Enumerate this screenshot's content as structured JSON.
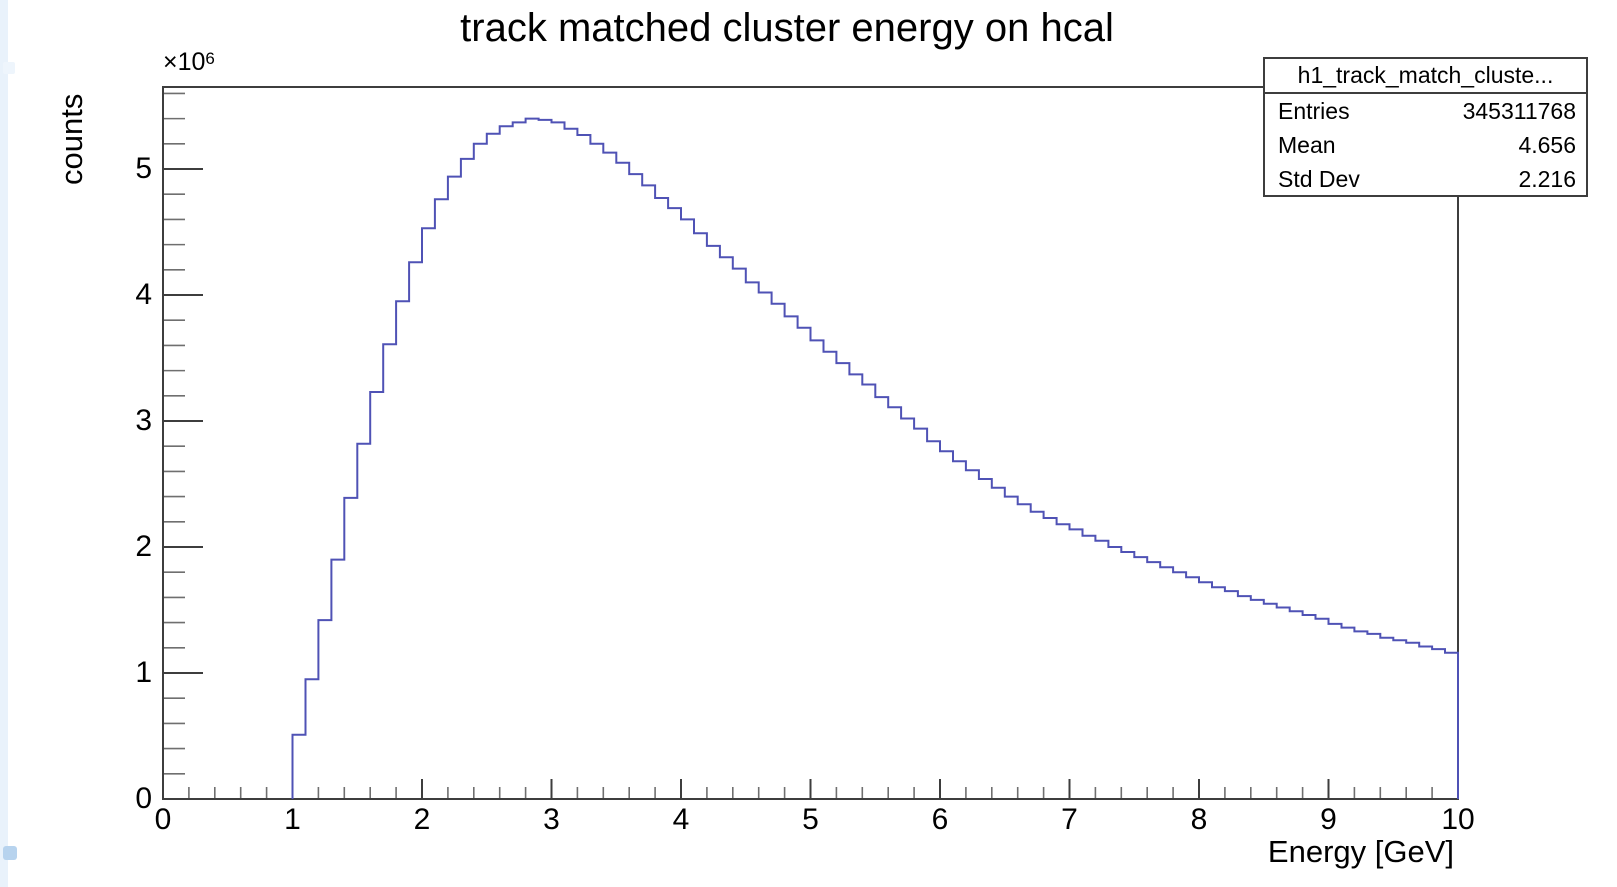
{
  "title": "track matched cluster energy on hcal",
  "axes": {
    "x_title": "Energy [GeV]",
    "y_title": "counts",
    "y_exponent_prefix": "×10",
    "y_exponent_power": "6",
    "x_tick_labels": [
      "0",
      "1",
      "2",
      "3",
      "4",
      "5",
      "6",
      "7",
      "8",
      "9",
      "10"
    ],
    "y_tick_labels": [
      "0",
      "1",
      "2",
      "3",
      "4",
      "5"
    ]
  },
  "stats_box": {
    "title": "h1_track_match_cluste...",
    "rows": [
      {
        "label": "Entries",
        "value": "345311768"
      },
      {
        "label": "Mean",
        "value": "4.656"
      },
      {
        "label": "Std Dev",
        "value": "2.216"
      }
    ]
  },
  "chart_data": {
    "type": "bar",
    "subtype": "step-histogram",
    "title": "track matched cluster energy on hcal",
    "xlabel": "Energy [GeV]",
    "ylabel": "counts",
    "x_range": [
      0,
      10
    ],
    "y_range_millions": [
      0,
      5.651
    ],
    "y_unit_scale": 1000000,
    "bin_start": 0,
    "bin_width": 0.1,
    "x_major_step": 1,
    "x_minor_step": 0.2,
    "y_major_step_millions": 1,
    "y_minor_step_millions": 0.2,
    "grid": false,
    "legend": "none",
    "values_millions": [
      0,
      0,
      0,
      0,
      0,
      0,
      0,
      0,
      0,
      0,
      0.51,
      0.95,
      1.42,
      1.9,
      2.39,
      2.82,
      3.23,
      3.61,
      3.95,
      4.26,
      4.53,
      4.76,
      4.94,
      5.08,
      5.2,
      5.28,
      5.34,
      5.37,
      5.4,
      5.39,
      5.37,
      5.32,
      5.27,
      5.2,
      5.13,
      5.05,
      4.96,
      4.87,
      4.77,
      4.69,
      4.6,
      4.49,
      4.39,
      4.3,
      4.21,
      4.1,
      4.02,
      3.93,
      3.83,
      3.74,
      3.64,
      3.55,
      3.46,
      3.37,
      3.29,
      3.19,
      3.11,
      3.02,
      2.94,
      2.84,
      2.76,
      2.68,
      2.61,
      2.54,
      2.47,
      2.4,
      2.34,
      2.28,
      2.23,
      2.18,
      2.14,
      2.09,
      2.05,
      2.0,
      1.96,
      1.92,
      1.88,
      1.84,
      1.8,
      1.76,
      1.72,
      1.68,
      1.65,
      1.61,
      1.58,
      1.55,
      1.52,
      1.49,
      1.46,
      1.43,
      1.39,
      1.36,
      1.33,
      1.31,
      1.28,
      1.26,
      1.24,
      1.21,
      1.19,
      1.16
    ],
    "colors": {
      "line": "#4f52b5",
      "frame": "#3d3d3d",
      "major_tick": "#3d3d3d",
      "minor_tick": "#6f6f6f",
      "text": "#000000"
    }
  }
}
